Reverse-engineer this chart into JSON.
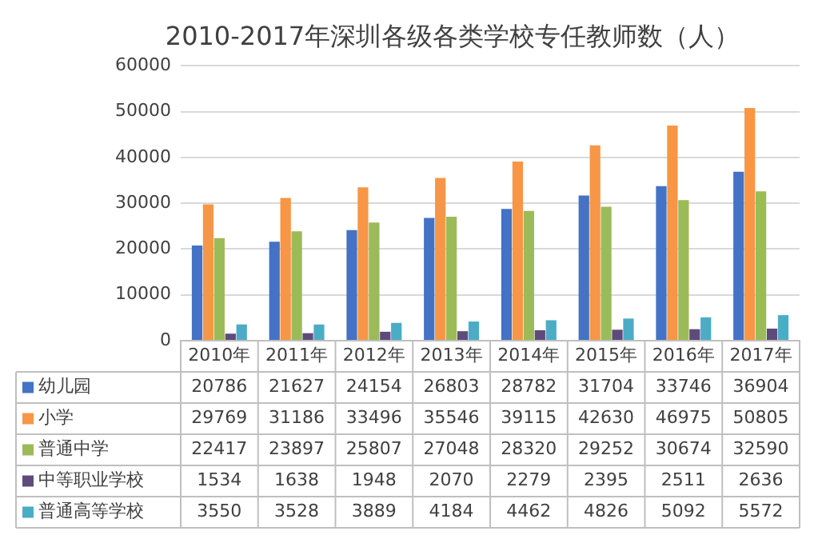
{
  "chart_data": {
    "type": "bar",
    "title": "2010-2017年深圳各级各类学校专任教师数（人）",
    "categories": [
      "2010年",
      "2011年",
      "2012年",
      "2013年",
      "2014年",
      "2015年",
      "2016年",
      "2017年"
    ],
    "series": [
      {
        "name": "幼儿园",
        "color": "#4472c4",
        "values": [
          20786,
          21627,
          24154,
          26803,
          28782,
          31704,
          33746,
          36904
        ]
      },
      {
        "name": "小学",
        "color": "#f79646",
        "values": [
          29769,
          31186,
          33496,
          35546,
          39115,
          42630,
          46975,
          50805
        ]
      },
      {
        "name": "普通中学",
        "color": "#9bbb59",
        "values": [
          22417,
          23897,
          25807,
          27048,
          28320,
          29252,
          30674,
          32590
        ]
      },
      {
        "name": "中等职业学校",
        "color": "#604a7b",
        "values": [
          1534,
          1638,
          1948,
          2070,
          2279,
          2395,
          2511,
          2636
        ]
      },
      {
        "name": "普通高等学校",
        "color": "#4bacc6",
        "values": [
          3550,
          3528,
          3889,
          4184,
          4462,
          4826,
          5092,
          5572
        ]
      }
    ],
    "ylim": [
      0,
      60000
    ],
    "yticks": [
      0,
      10000,
      20000,
      30000,
      40000,
      50000,
      60000
    ],
    "grid": "y",
    "legend": "bottom",
    "data_labels": true
  }
}
